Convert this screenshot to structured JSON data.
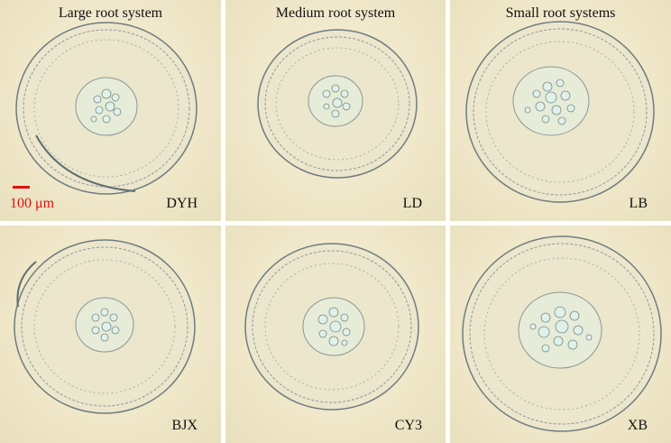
{
  "columns": [
    {
      "title": "Large root system"
    },
    {
      "title": "Medium root system"
    },
    {
      "title": "Small root systems"
    }
  ],
  "panels": [
    {
      "label": "DYH"
    },
    {
      "label": "LD"
    },
    {
      "label": "LB"
    },
    {
      "label": "BJX"
    },
    {
      "label": "CY3"
    },
    {
      "label": "XB"
    }
  ],
  "scale": {
    "label": "100 μm",
    "color": "#e01010"
  },
  "colors": {
    "background": "#efe7c8",
    "tissue_outline": "#7d8a8c",
    "vessel_fill": "#dff1e8"
  }
}
